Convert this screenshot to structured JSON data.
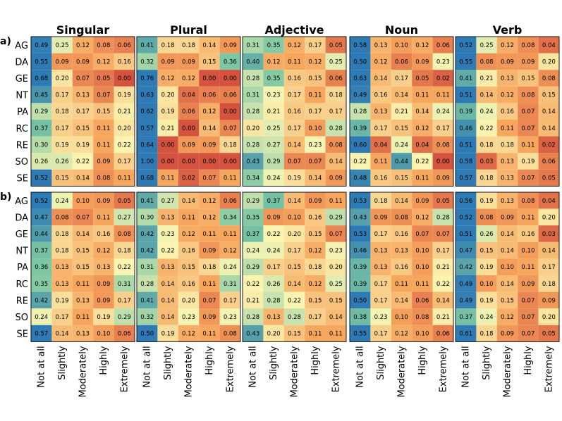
{
  "chart_data": {
    "type": "heatmap",
    "panel_labels": [
      "a)",
      "b)"
    ],
    "groups": [
      "Singular",
      "Plural",
      "Adjective",
      "Noun",
      "Verb"
    ],
    "rows": [
      "AG",
      "DA",
      "GE",
      "NT",
      "PA",
      "RC",
      "RE",
      "SO",
      "SE"
    ],
    "columns": [
      "Not at all",
      "Slightly",
      "Moderately",
      "Highly",
      "Extremely"
    ],
    "colormap": {
      "low": "#d5523f",
      "mid_low": "#f7a65e",
      "mid": "#fbf6b4",
      "mid_high": "#7cc6a2",
      "high": "#2e7ab4",
      "value_range": [
        0,
        0.5
      ]
    },
    "panels": [
      {
        "label": "a)",
        "values": {
          "Singular": [
            [
              0.49,
              0.25,
              0.12,
              0.08,
              0.06
            ],
            [
              0.55,
              0.09,
              0.09,
              0.12,
              0.16
            ],
            [
              0.68,
              0.2,
              0.07,
              0.05,
              0.0
            ],
            [
              0.45,
              0.17,
              0.13,
              0.07,
              0.19
            ],
            [
              0.29,
              0.18,
              0.17,
              0.15,
              0.21
            ],
            [
              0.37,
              0.17,
              0.15,
              0.11,
              0.2
            ],
            [
              0.3,
              0.19,
              0.19,
              0.11,
              0.22
            ],
            [
              0.26,
              0.26,
              0.22,
              0.09,
              0.17
            ],
            [
              0.52,
              0.15,
              0.14,
              0.08,
              0.11
            ]
          ],
          "Plural": [
            [
              0.41,
              0.18,
              0.18,
              0.14,
              0.09
            ],
            [
              0.32,
              0.09,
              0.09,
              0.15,
              0.36
            ],
            [
              0.76,
              0.12,
              0.12,
              0.0,
              0.0
            ],
            [
              0.63,
              0.2,
              0.04,
              0.06,
              0.06
            ],
            [
              0.62,
              0.19,
              0.06,
              0.12,
              0.0
            ],
            [
              0.57,
              0.21,
              0.0,
              0.14,
              0.07
            ],
            [
              0.64,
              0.0,
              0.09,
              0.09,
              0.18
            ],
            [
              1.0,
              0.0,
              0.0,
              0.0,
              0.0
            ],
            [
              0.68,
              0.11,
              0.02,
              0.07,
              0.11
            ]
          ],
          "Adjective": [
            [
              0.31,
              0.35,
              0.12,
              0.17,
              0.05
            ],
            [
              0.4,
              0.12,
              0.11,
              0.12,
              0.25
            ],
            [
              0.28,
              0.35,
              0.16,
              0.15,
              0.06
            ],
            [
              0.31,
              0.23,
              0.17,
              0.11,
              0.18
            ],
            [
              0.28,
              0.21,
              0.16,
              0.17,
              0.17
            ],
            [
              0.2,
              0.25,
              0.17,
              0.1,
              0.28
            ],
            [
              0.28,
              0.27,
              0.14,
              0.23,
              0.08
            ],
            [
              0.43,
              0.29,
              0.07,
              0.07,
              0.14
            ],
            [
              0.34,
              0.24,
              0.19,
              0.14,
              0.09
            ]
          ],
          "Noun": [
            [
              0.58,
              0.13,
              0.1,
              0.12,
              0.06
            ],
            [
              0.5,
              0.12,
              0.06,
              0.09,
              0.23
            ],
            [
              0.63,
              0.14,
              0.17,
              0.05,
              0.02
            ],
            [
              0.49,
              0.16,
              0.14,
              0.11,
              0.11
            ],
            [
              0.28,
              0.13,
              0.21,
              0.14,
              0.24
            ],
            [
              0.39,
              0.17,
              0.15,
              0.12,
              0.17
            ],
            [
              0.6,
              0.04,
              0.24,
              0.04,
              0.08
            ],
            [
              0.22,
              0.11,
              0.44,
              0.22,
              0.0
            ],
            [
              0.48,
              0.16,
              0.15,
              0.11,
              0.09
            ]
          ],
          "Verb": [
            [
              0.52,
              0.25,
              0.12,
              0.08,
              0.04
            ],
            [
              0.55,
              0.08,
              0.09,
              0.09,
              0.2
            ],
            [
              0.41,
              0.21,
              0.13,
              0.15,
              0.08
            ],
            [
              0.51,
              0.14,
              0.12,
              0.08,
              0.15
            ],
            [
              0.39,
              0.24,
              0.16,
              0.07,
              0.14
            ],
            [
              0.46,
              0.22,
              0.11,
              0.07,
              0.14
            ],
            [
              0.51,
              0.18,
              0.18,
              0.11,
              0.02
            ],
            [
              0.58,
              0.03,
              0.13,
              0.19,
              0.06
            ],
            [
              0.57,
              0.18,
              0.13,
              0.07,
              0.05
            ]
          ]
        }
      },
      {
        "label": "b)",
        "values": {
          "Singular": [
            [
              0.52,
              0.24,
              0.1,
              0.09,
              0.05
            ],
            [
              0.47,
              0.08,
              0.07,
              0.11,
              0.27
            ],
            [
              0.44,
              0.18,
              0.14,
              0.16,
              0.08
            ],
            [
              0.37,
              0.18,
              0.15,
              0.12,
              0.18
            ],
            [
              0.36,
              0.13,
              0.15,
              0.13,
              0.22
            ],
            [
              0.35,
              0.13,
              0.11,
              0.09,
              0.31
            ],
            [
              0.42,
              0.19,
              0.13,
              0.09,
              0.17
            ],
            [
              0.24,
              0.17,
              0.11,
              0.19,
              0.29
            ],
            [
              0.57,
              0.14,
              0.13,
              0.1,
              0.06
            ]
          ],
          "Plural": [
            [
              0.41,
              0.27,
              0.14,
              0.12,
              0.06
            ],
            [
              0.3,
              0.13,
              0.11,
              0.12,
              0.34
            ],
            [
              0.42,
              0.23,
              0.12,
              0.11,
              0.11
            ],
            [
              0.42,
              0.22,
              0.16,
              0.09,
              0.12
            ],
            [
              0.31,
              0.13,
              0.15,
              0.18,
              0.24
            ],
            [
              0.28,
              0.14,
              0.16,
              0.11,
              0.31
            ],
            [
              0.41,
              0.14,
              0.2,
              0.07,
              0.17
            ],
            [
              0.32,
              0.14,
              0.23,
              0.09,
              0.23
            ],
            [
              0.5,
              0.19,
              0.12,
              0.11,
              0.08
            ]
          ],
          "Adjective": [
            [
              0.29,
              0.37,
              0.14,
              0.09,
              0.11
            ],
            [
              0.35,
              0.09,
              0.1,
              0.16,
              0.29
            ],
            [
              0.37,
              0.22,
              0.2,
              0.15,
              0.07
            ],
            [
              0.24,
              0.24,
              0.17,
              0.12,
              0.23
            ],
            [
              0.29,
              0.17,
              0.15,
              0.18,
              0.2
            ],
            [
              0.22,
              0.26,
              0.14,
              0.12,
              0.25
            ],
            [
              0.21,
              0.28,
              0.22,
              0.15,
              0.15
            ],
            [
              0.28,
              0.13,
              0.28,
              0.17,
              0.14
            ],
            [
              0.43,
              0.2,
              0.15,
              0.11,
              0.11
            ]
          ],
          "Noun": [
            [
              0.53,
              0.18,
              0.14,
              0.09,
              0.05
            ],
            [
              0.43,
              0.09,
              0.08,
              0.12,
              0.28
            ],
            [
              0.53,
              0.17,
              0.16,
              0.07,
              0.07
            ],
            [
              0.46,
              0.13,
              0.13,
              0.1,
              0.17
            ],
            [
              0.39,
              0.13,
              0.16,
              0.1,
              0.21
            ],
            [
              0.39,
              0.17,
              0.11,
              0.11,
              0.22
            ],
            [
              0.5,
              0.17,
              0.14,
              0.06,
              0.14
            ],
            [
              0.38,
              0.23,
              0.1,
              0.08,
              0.21
            ],
            [
              0.55,
              0.17,
              0.12,
              0.1,
              0.06
            ]
          ],
          "Verb": [
            [
              0.56,
              0.19,
              0.13,
              0.08,
              0.04
            ],
            [
              0.52,
              0.08,
              0.09,
              0.11,
              0.2
            ],
            [
              0.51,
              0.26,
              0.14,
              0.16,
              0.03
            ],
            [
              0.47,
              0.15,
              0.14,
              0.1,
              0.14
            ],
            [
              0.42,
              0.19,
              0.1,
              0.11,
              0.17
            ],
            [
              0.49,
              0.1,
              0.14,
              0.09,
              0.18
            ],
            [
              0.49,
              0.19,
              0.15,
              0.07,
              0.09
            ],
            [
              0.37,
              0.24,
              0.12,
              0.07,
              0.2
            ],
            [
              0.61,
              0.18,
              0.09,
              0.07,
              0.05
            ]
          ]
        }
      }
    ]
  }
}
